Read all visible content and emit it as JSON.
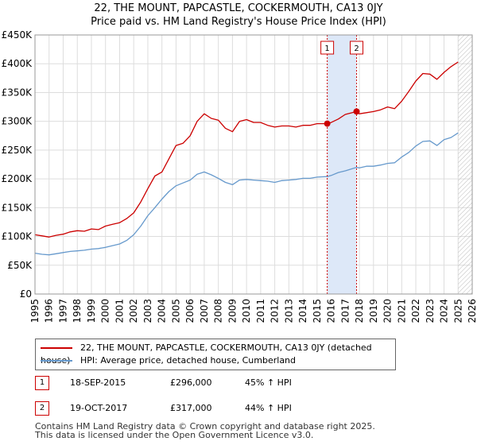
{
  "header": {
    "title": "22, THE MOUNT, PAPCASTLE, COCKERMOUTH, CA13 0JY",
    "subtitle": "Price paid vs. HM Land Registry's House Price Index (HPI)"
  },
  "legend": {
    "series1": "22, THE MOUNT, PAPCASTLE, COCKERMOUTH, CA13 0JY (detached house)",
    "series2": "HPI: Average price, detached house, Cumberland"
  },
  "transactions": [
    {
      "badge": "1",
      "date": "18-SEP-2015",
      "price": "£296,000",
      "hpi": "45% ↑ HPI"
    },
    {
      "badge": "2",
      "date": "19-OCT-2017",
      "price": "£317,000",
      "hpi": "44% ↑ HPI"
    }
  ],
  "footer": {
    "line1": "Contains HM Land Registry data © Crown copyright and database right 2025.",
    "line2": "This data is licensed under the Open Government Licence v3.0."
  },
  "colors": {
    "property": "#cc0000",
    "hpi": "#6699cc",
    "shade": "#dde8f8",
    "grid": "#dddddd"
  },
  "chart_data": {
    "type": "line",
    "title": "22, THE MOUNT, PAPCASTLE, COCKERMOUTH, CA13 0JY",
    "subtitle": "Price paid vs. HM Land Registry's House Price Index (HPI)",
    "xlabel": "",
    "ylabel": "",
    "xlim": [
      1995,
      2026
    ],
    "ylim": [
      0,
      450000
    ],
    "grid": true,
    "x_ticks": [
      1995,
      1996,
      1997,
      1998,
      1999,
      2000,
      2001,
      2002,
      2003,
      2004,
      2005,
      2006,
      2007,
      2008,
      2009,
      2010,
      2011,
      2012,
      2013,
      2014,
      2015,
      2016,
      2017,
      2018,
      2019,
      2020,
      2021,
      2022,
      2023,
      2024,
      2025,
      2026
    ],
    "y_ticks": [
      {
        "value": 0,
        "label": "£0"
      },
      {
        "value": 50000,
        "label": "£50K"
      },
      {
        "value": 100000,
        "label": "£100K"
      },
      {
        "value": 150000,
        "label": "£150K"
      },
      {
        "value": 200000,
        "label": "£200K"
      },
      {
        "value": 250000,
        "label": "£250K"
      },
      {
        "value": 300000,
        "label": "£300K"
      },
      {
        "value": 350000,
        "label": "£350K"
      },
      {
        "value": 400000,
        "label": "£400K"
      },
      {
        "value": 450000,
        "label": "£450K"
      }
    ],
    "shaded_region": [
      2015.72,
      2017.8
    ],
    "hatched_region_from": 2025.0,
    "series": [
      {
        "name": "22, THE MOUNT, PAPCASTLE, COCKERMOUTH, CA13 0JY (detached house)",
        "color": "#cc0000",
        "x": [
          1995.0,
          1995.5,
          1996.0,
          1996.5,
          1997.0,
          1997.5,
          1998.0,
          1998.5,
          1999.0,
          1999.5,
          2000.0,
          2000.5,
          2001.0,
          2001.5,
          2002.0,
          2002.5,
          2003.0,
          2003.5,
          2004.0,
          2004.5,
          2005.0,
          2005.5,
          2006.0,
          2006.5,
          2007.0,
          2007.5,
          2008.0,
          2008.5,
          2009.0,
          2009.5,
          2010.0,
          2010.5,
          2011.0,
          2011.5,
          2012.0,
          2012.5,
          2013.0,
          2013.5,
          2014.0,
          2014.5,
          2015.0,
          2015.72,
          2016.0,
          2016.5,
          2017.0,
          2017.8,
          2018.0,
          2018.5,
          2019.0,
          2019.5,
          2020.0,
          2020.5,
          2021.0,
          2021.5,
          2022.0,
          2022.5,
          2023.0,
          2023.5,
          2024.0,
          2024.5,
          2025.0
        ],
        "values": [
          103000,
          101000,
          99000,
          102000,
          104000,
          108000,
          110000,
          109000,
          113000,
          112000,
          118000,
          121000,
          124000,
          131000,
          141000,
          160000,
          183000,
          205000,
          212000,
          235000,
          258000,
          262000,
          275000,
          300000,
          313000,
          305000,
          302000,
          288000,
          282000,
          300000,
          303000,
          298000,
          298000,
          293000,
          290000,
          292000,
          292000,
          290000,
          293000,
          293000,
          296000,
          296000,
          298000,
          304000,
          312000,
          317000,
          313000,
          315000,
          317000,
          320000,
          325000,
          322000,
          335000,
          352000,
          370000,
          383000,
          382000,
          373000,
          385000,
          395000,
          403000
        ]
      },
      {
        "name": "HPI: Average price, detached house, Cumberland",
        "color": "#6699cc",
        "x": [
          1995.0,
          1995.5,
          1996.0,
          1996.5,
          1997.0,
          1997.5,
          1998.0,
          1998.5,
          1999.0,
          1999.5,
          2000.0,
          2000.5,
          2001.0,
          2001.5,
          2002.0,
          2002.5,
          2003.0,
          2003.5,
          2004.0,
          2004.5,
          2005.0,
          2005.5,
          2006.0,
          2006.5,
          2007.0,
          2007.5,
          2008.0,
          2008.5,
          2009.0,
          2009.5,
          2010.0,
          2010.5,
          2011.0,
          2011.5,
          2012.0,
          2012.5,
          2013.0,
          2013.5,
          2014.0,
          2014.5,
          2015.0,
          2015.72,
          2016.0,
          2016.5,
          2017.0,
          2017.8,
          2018.0,
          2018.5,
          2019.0,
          2019.5,
          2020.0,
          2020.5,
          2021.0,
          2021.5,
          2022.0,
          2022.5,
          2023.0,
          2023.5,
          2024.0,
          2024.5,
          2025.0
        ],
        "values": [
          71000,
          69000,
          68000,
          70000,
          72000,
          74000,
          75000,
          76000,
          78000,
          79000,
          81000,
          84000,
          87000,
          93000,
          103000,
          118000,
          136000,
          150000,
          165000,
          178000,
          188000,
          193000,
          198000,
          208000,
          212000,
          207000,
          201000,
          194000,
          190000,
          198000,
          199000,
          198000,
          197000,
          196000,
          194000,
          197000,
          198000,
          199000,
          201000,
          201000,
          203000,
          204000,
          206000,
          211000,
          214000,
          220000,
          219000,
          222000,
          222000,
          224000,
          227000,
          228000,
          238000,
          246000,
          257000,
          265000,
          266000,
          258000,
          268000,
          272000,
          280000
        ]
      }
    ],
    "markers": [
      {
        "label": "1",
        "x": 2015.72,
        "value": 296000
      },
      {
        "label": "2",
        "x": 2017.8,
        "value": 317000
      }
    ]
  }
}
